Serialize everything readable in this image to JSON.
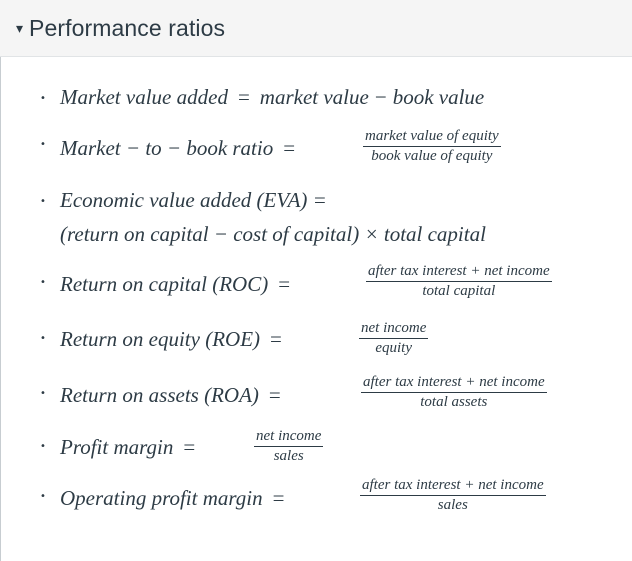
{
  "section": {
    "caret": "▾",
    "title": "Performance ratios"
  },
  "ratios": {
    "mva": {
      "lhs": "Market value added",
      "eq": "=",
      "rhs_a": "market value",
      "op": "−",
      "rhs_b": "book value"
    },
    "mtb": {
      "lhs": "Market − to − book ratio",
      "eq": "=",
      "num": "market value of equity",
      "den": "book value of equity"
    },
    "eva": {
      "lhs": "Economic value added (EVA) =",
      "line2": "(return on capital  − cost of capital) × total capital"
    },
    "roc": {
      "lhs": "Return on capital (ROC)",
      "eq": "=",
      "num": "after tax interest + net income",
      "den": "total capital"
    },
    "roe": {
      "lhs": "Return on equity (ROE)",
      "eq": "=",
      "num": "net income",
      "den": "equity"
    },
    "roa": {
      "lhs": "Return on assets (ROA)",
      "eq": "=",
      "num": "after tax interest + net income",
      "den": "total assets"
    },
    "pm": {
      "lhs": "Profit margin",
      "eq": "=",
      "num": "net income",
      "den": "sales"
    },
    "opm": {
      "lhs": "Operating profit margin",
      "eq": "=",
      "num": "after tax interest + net income",
      "den": "sales"
    }
  },
  "colors": {
    "text": "#2d3b45",
    "header_bg": "#f5f5f5",
    "border": "#c7cdd1"
  }
}
